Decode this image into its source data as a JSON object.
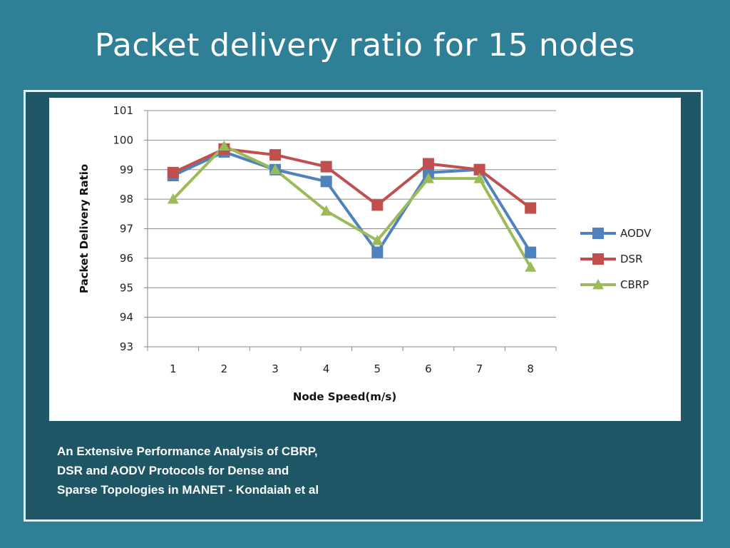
{
  "title": "Packet delivery ratio for 15 nodes",
  "caption": {
    "lines": [
      "An Extensive Performance Analysis of CBRP,",
      "DSR and AODV Protocols for Dense and",
      "Sparse Topologies in MANET  - Kondaiah et al"
    ]
  },
  "chart_data": {
    "type": "line",
    "title": "",
    "xlabel": "Node Speed(m/s)",
    "ylabel": "Packet Delivery Ratio",
    "categories": [
      "1",
      "2",
      "3",
      "4",
      "5",
      "6",
      "7",
      "8"
    ],
    "ylim": [
      93,
      101
    ],
    "yticks": [
      93,
      94,
      95,
      96,
      97,
      98,
      99,
      100,
      101
    ],
    "grid": "horizontal",
    "legend_position": "right",
    "series": [
      {
        "name": "AODV",
        "color": "#4f81bd",
        "marker": "square",
        "values": [
          98.8,
          99.6,
          99.0,
          98.6,
          96.2,
          98.9,
          99.0,
          96.2
        ]
      },
      {
        "name": "DSR",
        "color": "#c0504d",
        "marker": "square",
        "values": [
          98.9,
          99.7,
          99.5,
          99.1,
          97.8,
          99.2,
          99.0,
          97.7
        ]
      },
      {
        "name": "CBRP",
        "color": "#9bbb59",
        "marker": "triangle",
        "values": [
          98.0,
          99.8,
          99.0,
          97.6,
          96.6,
          98.7,
          98.7,
          95.7
        ]
      }
    ]
  }
}
